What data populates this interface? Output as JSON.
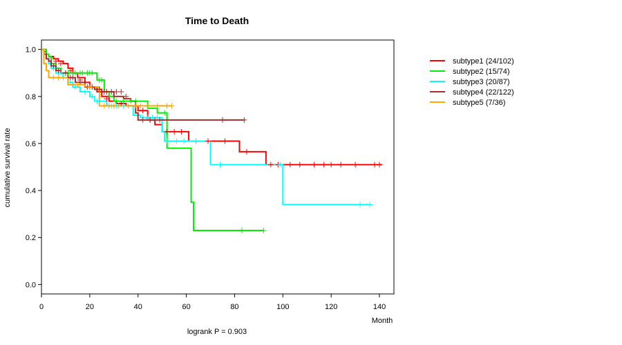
{
  "chart_data": {
    "type": "line",
    "title": "Time to Death",
    "xlabel": "Month",
    "ylabel": "cumulative survival rate",
    "annotation": "logrank P = 0.903",
    "xlim": [
      0,
      146
    ],
    "ylim": [
      -0.04,
      1.04
    ],
    "xticks": [
      0,
      20,
      40,
      60,
      80,
      100,
      120,
      140
    ],
    "yticks": [
      0.0,
      0.2,
      0.4,
      0.6,
      0.8,
      1.0
    ],
    "ytick_labels": [
      "0.0",
      "0.2",
      "0.4",
      "0.6",
      "0.8",
      "1.0"
    ],
    "legend_position": "top-right outside plot",
    "series": [
      {
        "name": "subtype1 (24/102)",
        "color": "#ff0000",
        "steps": [
          [
            0,
            1.0
          ],
          [
            1,
            0.99
          ],
          [
            2,
            0.98
          ],
          [
            3,
            0.97
          ],
          [
            5,
            0.96
          ],
          [
            7,
            0.95
          ],
          [
            9,
            0.94
          ],
          [
            11,
            0.92
          ],
          [
            13,
            0.9
          ],
          [
            15,
            0.88
          ],
          [
            18,
            0.86
          ],
          [
            20,
            0.84
          ],
          [
            23,
            0.82
          ],
          [
            25,
            0.8
          ],
          [
            28,
            0.78
          ],
          [
            31,
            0.77
          ],
          [
            35,
            0.76
          ],
          [
            40,
            0.74
          ],
          [
            44,
            0.7
          ],
          [
            47,
            0.68
          ],
          [
            50,
            0.65
          ],
          [
            61,
            0.61
          ],
          [
            82,
            0.565
          ],
          [
            93,
            0.51
          ],
          [
            141,
            0.51
          ]
        ],
        "censors": [
          [
            6,
            0.95
          ],
          [
            8,
            0.94
          ],
          [
            12,
            0.91
          ],
          [
            16,
            0.87
          ],
          [
            21,
            0.84
          ],
          [
            27,
            0.79
          ],
          [
            33,
            0.77
          ],
          [
            42,
            0.74
          ],
          [
            45,
            0.7
          ],
          [
            52,
            0.65
          ],
          [
            55,
            0.65
          ],
          [
            58,
            0.65
          ],
          [
            64,
            0.61
          ],
          [
            69,
            0.61
          ],
          [
            76,
            0.61
          ],
          [
            85,
            0.565
          ],
          [
            95,
            0.51
          ],
          [
            98,
            0.51
          ],
          [
            103,
            0.51
          ],
          [
            107,
            0.51
          ],
          [
            113,
            0.51
          ],
          [
            117,
            0.51
          ],
          [
            120,
            0.51
          ],
          [
            124,
            0.51
          ],
          [
            130,
            0.51
          ],
          [
            138,
            0.51
          ],
          [
            140,
            0.51
          ]
        ]
      },
      {
        "name": "subtype2 (15/74)",
        "color": "#00ee00",
        "steps": [
          [
            0,
            1.0
          ],
          [
            2,
            0.98
          ],
          [
            3,
            0.97
          ],
          [
            4,
            0.94
          ],
          [
            6,
            0.92
          ],
          [
            8,
            0.9
          ],
          [
            23,
            0.87
          ],
          [
            26,
            0.82
          ],
          [
            28,
            0.8
          ],
          [
            30,
            0.78
          ],
          [
            44,
            0.75
          ],
          [
            48,
            0.73
          ],
          [
            52,
            0.58
          ],
          [
            62,
            0.35
          ],
          [
            63,
            0.23
          ],
          [
            92,
            0.23
          ]
        ],
        "censors": [
          [
            10,
            0.9
          ],
          [
            11,
            0.9
          ],
          [
            13,
            0.9
          ],
          [
            14,
            0.9
          ],
          [
            16,
            0.9
          ],
          [
            17,
            0.9
          ],
          [
            19,
            0.9
          ],
          [
            20,
            0.9
          ],
          [
            21,
            0.9
          ],
          [
            24,
            0.87
          ],
          [
            25,
            0.87
          ],
          [
            27,
            0.82
          ],
          [
            31,
            0.78
          ],
          [
            34,
            0.78
          ],
          [
            37,
            0.78
          ],
          [
            39,
            0.78
          ],
          [
            51,
            0.73
          ],
          [
            83,
            0.23
          ],
          [
            92,
            0.23
          ]
        ]
      },
      {
        "name": "subtype3 (20/87)",
        "color": "#00ffff",
        "steps": [
          [
            0,
            1.0
          ],
          [
            1,
            0.98
          ],
          [
            2,
            0.96
          ],
          [
            3,
            0.94
          ],
          [
            4,
            0.92
          ],
          [
            6,
            0.9
          ],
          [
            9,
            0.88
          ],
          [
            11,
            0.86
          ],
          [
            13,
            0.84
          ],
          [
            16,
            0.82
          ],
          [
            20,
            0.8
          ],
          [
            22,
            0.78
          ],
          [
            27,
            0.76
          ],
          [
            38,
            0.72
          ],
          [
            41,
            0.71
          ],
          [
            50,
            0.65
          ],
          [
            51,
            0.61
          ],
          [
            70,
            0.51
          ],
          [
            100,
            0.34
          ],
          [
            136,
            0.34
          ]
        ],
        "censors": [
          [
            5,
            0.92
          ],
          [
            7,
            0.9
          ],
          [
            8,
            0.9
          ],
          [
            12,
            0.86
          ],
          [
            14,
            0.84
          ],
          [
            18,
            0.82
          ],
          [
            21,
            0.8
          ],
          [
            23,
            0.78
          ],
          [
            24,
            0.78
          ],
          [
            29,
            0.76
          ],
          [
            31,
            0.76
          ],
          [
            34,
            0.76
          ],
          [
            42,
            0.71
          ],
          [
            44,
            0.71
          ],
          [
            46,
            0.71
          ],
          [
            48,
            0.71
          ],
          [
            52,
            0.61
          ],
          [
            56,
            0.61
          ],
          [
            59,
            0.61
          ],
          [
            64,
            0.61
          ],
          [
            74,
            0.51
          ],
          [
            99,
            0.51
          ],
          [
            132,
            0.34
          ],
          [
            136,
            0.34
          ]
        ]
      },
      {
        "name": "subtype4 (22/122)",
        "color": "#a52a2a",
        "steps": [
          [
            0,
            1.0
          ],
          [
            1,
            0.98
          ],
          [
            2,
            0.96
          ],
          [
            3,
            0.95
          ],
          [
            4,
            0.93
          ],
          [
            6,
            0.91
          ],
          [
            8,
            0.9
          ],
          [
            11,
            0.88
          ],
          [
            14,
            0.86
          ],
          [
            18,
            0.84
          ],
          [
            22,
            0.83
          ],
          [
            25,
            0.82
          ],
          [
            30,
            0.8
          ],
          [
            34,
            0.79
          ],
          [
            37,
            0.78
          ],
          [
            39,
            0.73
          ],
          [
            40,
            0.7
          ],
          [
            84,
            0.7
          ]
        ],
        "censors": [
          [
            5,
            0.93
          ],
          [
            7,
            0.91
          ],
          [
            10,
            0.9
          ],
          [
            12,
            0.88
          ],
          [
            13,
            0.88
          ],
          [
            16,
            0.86
          ],
          [
            19,
            0.84
          ],
          [
            20,
            0.84
          ],
          [
            24,
            0.83
          ],
          [
            26,
            0.82
          ],
          [
            27,
            0.82
          ],
          [
            29,
            0.82
          ],
          [
            31,
            0.82
          ],
          [
            33,
            0.82
          ],
          [
            35,
            0.8
          ],
          [
            42,
            0.7
          ],
          [
            45,
            0.7
          ],
          [
            47,
            0.7
          ],
          [
            49,
            0.7
          ],
          [
            75,
            0.7
          ],
          [
            84,
            0.7
          ]
        ]
      },
      {
        "name": "subtype5 (7/36)",
        "color": "#ffa500",
        "steps": [
          [
            0,
            1.0
          ],
          [
            1,
            0.94
          ],
          [
            2,
            0.91
          ],
          [
            3,
            0.88
          ],
          [
            11,
            0.85
          ],
          [
            18,
            0.84
          ],
          [
            24,
            0.76
          ],
          [
            54,
            0.76
          ]
        ],
        "censors": [
          [
            5,
            0.88
          ],
          [
            7,
            0.88
          ],
          [
            9,
            0.88
          ],
          [
            13,
            0.85
          ],
          [
            15,
            0.85
          ],
          [
            20,
            0.84
          ],
          [
            26,
            0.76
          ],
          [
            28,
            0.76
          ],
          [
            30,
            0.76
          ],
          [
            32,
            0.76
          ],
          [
            36,
            0.76
          ],
          [
            39,
            0.76
          ],
          [
            41,
            0.76
          ],
          [
            44,
            0.76
          ],
          [
            48,
            0.76
          ],
          [
            52,
            0.76
          ],
          [
            54,
            0.76
          ]
        ]
      }
    ]
  }
}
